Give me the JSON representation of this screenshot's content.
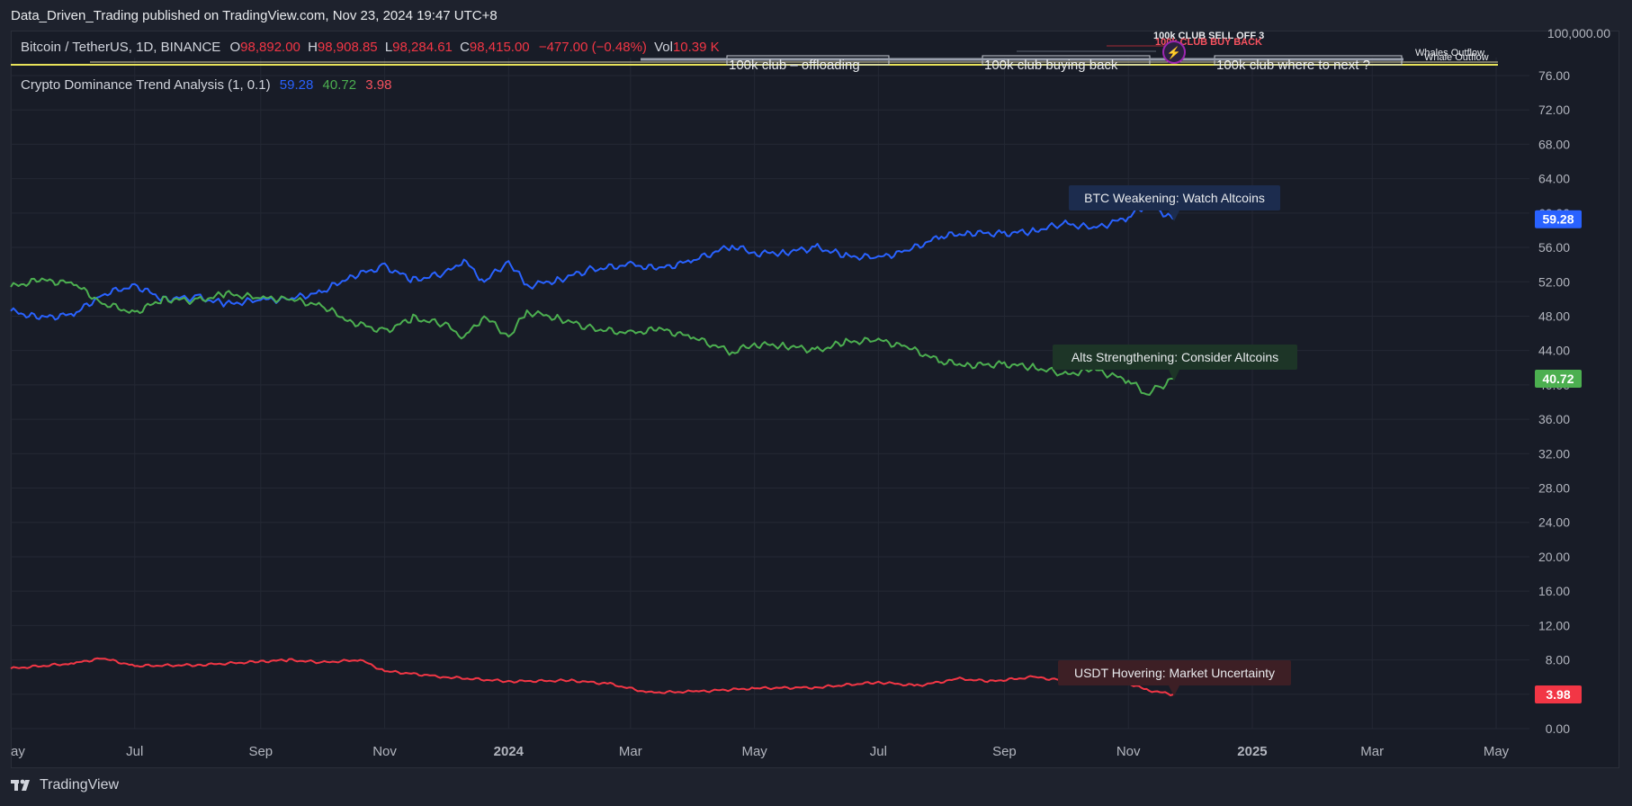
{
  "publisher": "Data_Driven_Trading published on TradingView.com, Nov 23, 2024 19:47 UTC+8",
  "symbol": {
    "name": "Bitcoin / TetherUS, 1D, BINANCE",
    "o_label": "O",
    "o": "98,892.00",
    "h_label": "H",
    "h": "98,908.85",
    "l_label": "L",
    "l": "98,284.61",
    "c_label": "C",
    "c": "98,415.00",
    "change": "−477.00 (−0.48%)",
    "vol_label": "Vol",
    "vol": "10.39 K"
  },
  "indicator": {
    "name": "Crypto Dominance Trend Analysis (1, 0.1)",
    "v1": "59.28",
    "v2": "40.72",
    "v3": "3.98"
  },
  "top_overlay": {
    "price_top": "100,000.00",
    "texts": [
      "100k club – offloading",
      "100k club buying back",
      "100k club where to next ?",
      "100k CLUB SELL OFF 3",
      "100k CLUB BUY BACK",
      "Whales Outflow",
      "Whale Outflow"
    ]
  },
  "annotations": {
    "btc": "BTC Weakening: Watch Altcoins",
    "alts": "Alts Strengthening: Consider Altcoins",
    "usdt": "USDT Hovering: Market Uncertainty"
  },
  "footer": {
    "brand": "TradingView"
  },
  "colors": {
    "btc": "#2962ff",
    "alts": "#4caf50",
    "usdt": "#f23645",
    "bg": "#181c27",
    "grid": "#242834"
  },
  "chart_data": {
    "type": "line",
    "x_ticks": [
      "ay",
      "Jul",
      "Sep",
      "Nov",
      "2024",
      "Mar",
      "May",
      "Jul",
      "Sep",
      "Nov",
      "2025",
      "Mar",
      "May"
    ],
    "y_ticks": [
      "76.00",
      "72.00",
      "68.00",
      "64.00",
      "60.00",
      "56.00",
      "52.00",
      "48.00",
      "44.00",
      "40.00",
      "36.00",
      "32.00",
      "28.00",
      "24.00",
      "20.00",
      "16.00",
      "12.00",
      "8.00",
      "4.00",
      "0.00"
    ],
    "ylim": [
      0,
      76
    ],
    "x_range": [
      "2023-05-01",
      "2025-05-01"
    ],
    "grid": true,
    "series": [
      {
        "name": "BTC",
        "color": "#2962ff",
        "points": [
          [
            "2023-05-01",
            48.6
          ],
          [
            "2023-05-15",
            47.8
          ],
          [
            "2023-06-01",
            48.2
          ],
          [
            "2023-06-15",
            50.5
          ],
          [
            "2023-07-01",
            51.6
          ],
          [
            "2023-07-15",
            50.0
          ],
          [
            "2023-08-01",
            50.2
          ],
          [
            "2023-08-15",
            49.4
          ],
          [
            "2023-09-01",
            49.9
          ],
          [
            "2023-09-15",
            50.0
          ],
          [
            "2023-10-01",
            50.8
          ],
          [
            "2023-10-15",
            52.6
          ],
          [
            "2023-11-01",
            53.8
          ],
          [
            "2023-11-15",
            52.2
          ],
          [
            "2023-12-01",
            53.0
          ],
          [
            "2023-12-10",
            54.5
          ],
          [
            "2023-12-20",
            52.0
          ],
          [
            "2024-01-01",
            54.4
          ],
          [
            "2024-01-10",
            51.5
          ],
          [
            "2024-01-25",
            52.2
          ],
          [
            "2024-02-10",
            53.4
          ],
          [
            "2024-03-01",
            54.0
          ],
          [
            "2024-03-15",
            53.5
          ],
          [
            "2024-04-01",
            54.5
          ],
          [
            "2024-04-20",
            56.2
          ],
          [
            "2024-05-01",
            55.3
          ],
          [
            "2024-05-15",
            55.4
          ],
          [
            "2024-06-01",
            56.0
          ],
          [
            "2024-06-15",
            55.0
          ],
          [
            "2024-07-01",
            54.8
          ],
          [
            "2024-07-15",
            55.6
          ],
          [
            "2024-08-01",
            57.3
          ],
          [
            "2024-08-15",
            57.7
          ],
          [
            "2024-09-01",
            57.6
          ],
          [
            "2024-09-15",
            57.9
          ],
          [
            "2024-10-01",
            58.8
          ],
          [
            "2024-10-15",
            58.2
          ],
          [
            "2024-11-01",
            59.5
          ],
          [
            "2024-11-10",
            61.0
          ],
          [
            "2024-11-17",
            60.2
          ],
          [
            "2024-11-23",
            59.28
          ]
        ]
      },
      {
        "name": "Alts",
        "color": "#4caf50",
        "points": [
          [
            "2023-05-01",
            51.4
          ],
          [
            "2023-05-15",
            52.2
          ],
          [
            "2023-06-01",
            51.8
          ],
          [
            "2023-06-15",
            49.5
          ],
          [
            "2023-07-01",
            48.4
          ],
          [
            "2023-07-15",
            50.0
          ],
          [
            "2023-08-01",
            49.8
          ],
          [
            "2023-08-15",
            50.6
          ],
          [
            "2023-09-01",
            50.1
          ],
          [
            "2023-09-15",
            50.0
          ],
          [
            "2023-10-01",
            49.2
          ],
          [
            "2023-10-15",
            47.4
          ],
          [
            "2023-11-01",
            46.2
          ],
          [
            "2023-11-15",
            47.8
          ],
          [
            "2023-12-01",
            47.0
          ],
          [
            "2023-12-10",
            45.5
          ],
          [
            "2023-12-20",
            48.0
          ],
          [
            "2024-01-01",
            45.6
          ],
          [
            "2024-01-10",
            48.5
          ],
          [
            "2024-01-25",
            47.8
          ],
          [
            "2024-02-10",
            46.6
          ],
          [
            "2024-03-01",
            46.0
          ],
          [
            "2024-03-15",
            46.5
          ],
          [
            "2024-04-01",
            45.5
          ],
          [
            "2024-04-20",
            43.8
          ],
          [
            "2024-05-01",
            44.7
          ],
          [
            "2024-05-15",
            44.6
          ],
          [
            "2024-06-01",
            44.0
          ],
          [
            "2024-06-15",
            45.0
          ],
          [
            "2024-07-01",
            45.2
          ],
          [
            "2024-07-15",
            44.4
          ],
          [
            "2024-08-01",
            42.7
          ],
          [
            "2024-08-15",
            42.3
          ],
          [
            "2024-09-01",
            42.4
          ],
          [
            "2024-09-15",
            42.1
          ],
          [
            "2024-10-01",
            41.2
          ],
          [
            "2024-10-15",
            41.8
          ],
          [
            "2024-11-01",
            40.5
          ],
          [
            "2024-11-10",
            39.0
          ],
          [
            "2024-11-17",
            39.8
          ],
          [
            "2024-11-23",
            40.72
          ]
        ]
      },
      {
        "name": "USDT",
        "color": "#f23645",
        "points": [
          [
            "2023-05-01",
            7.0
          ],
          [
            "2023-06-01",
            7.6
          ],
          [
            "2023-06-15",
            8.2
          ],
          [
            "2023-07-01",
            7.3
          ],
          [
            "2023-08-01",
            7.4
          ],
          [
            "2023-09-01",
            7.8
          ],
          [
            "2023-09-15",
            8.0
          ],
          [
            "2023-10-01",
            7.7
          ],
          [
            "2023-10-20",
            8.0
          ],
          [
            "2023-11-01",
            6.7
          ],
          [
            "2023-12-01",
            6.0
          ],
          [
            "2024-01-01",
            5.5
          ],
          [
            "2024-02-01",
            5.6
          ],
          [
            "2024-02-20",
            5.2
          ],
          [
            "2024-03-10",
            4.2
          ],
          [
            "2024-04-01",
            4.3
          ],
          [
            "2024-05-01",
            4.7
          ],
          [
            "2024-06-01",
            4.8
          ],
          [
            "2024-07-01",
            5.4
          ],
          [
            "2024-07-20",
            5.0
          ],
          [
            "2024-08-10",
            5.8
          ],
          [
            "2024-08-25",
            5.5
          ],
          [
            "2024-09-15",
            6.0
          ],
          [
            "2024-10-01",
            5.6
          ],
          [
            "2024-10-20",
            6.0
          ],
          [
            "2024-11-01",
            5.3
          ],
          [
            "2024-11-10",
            4.5
          ],
          [
            "2024-11-23",
            3.98
          ]
        ]
      }
    ]
  }
}
